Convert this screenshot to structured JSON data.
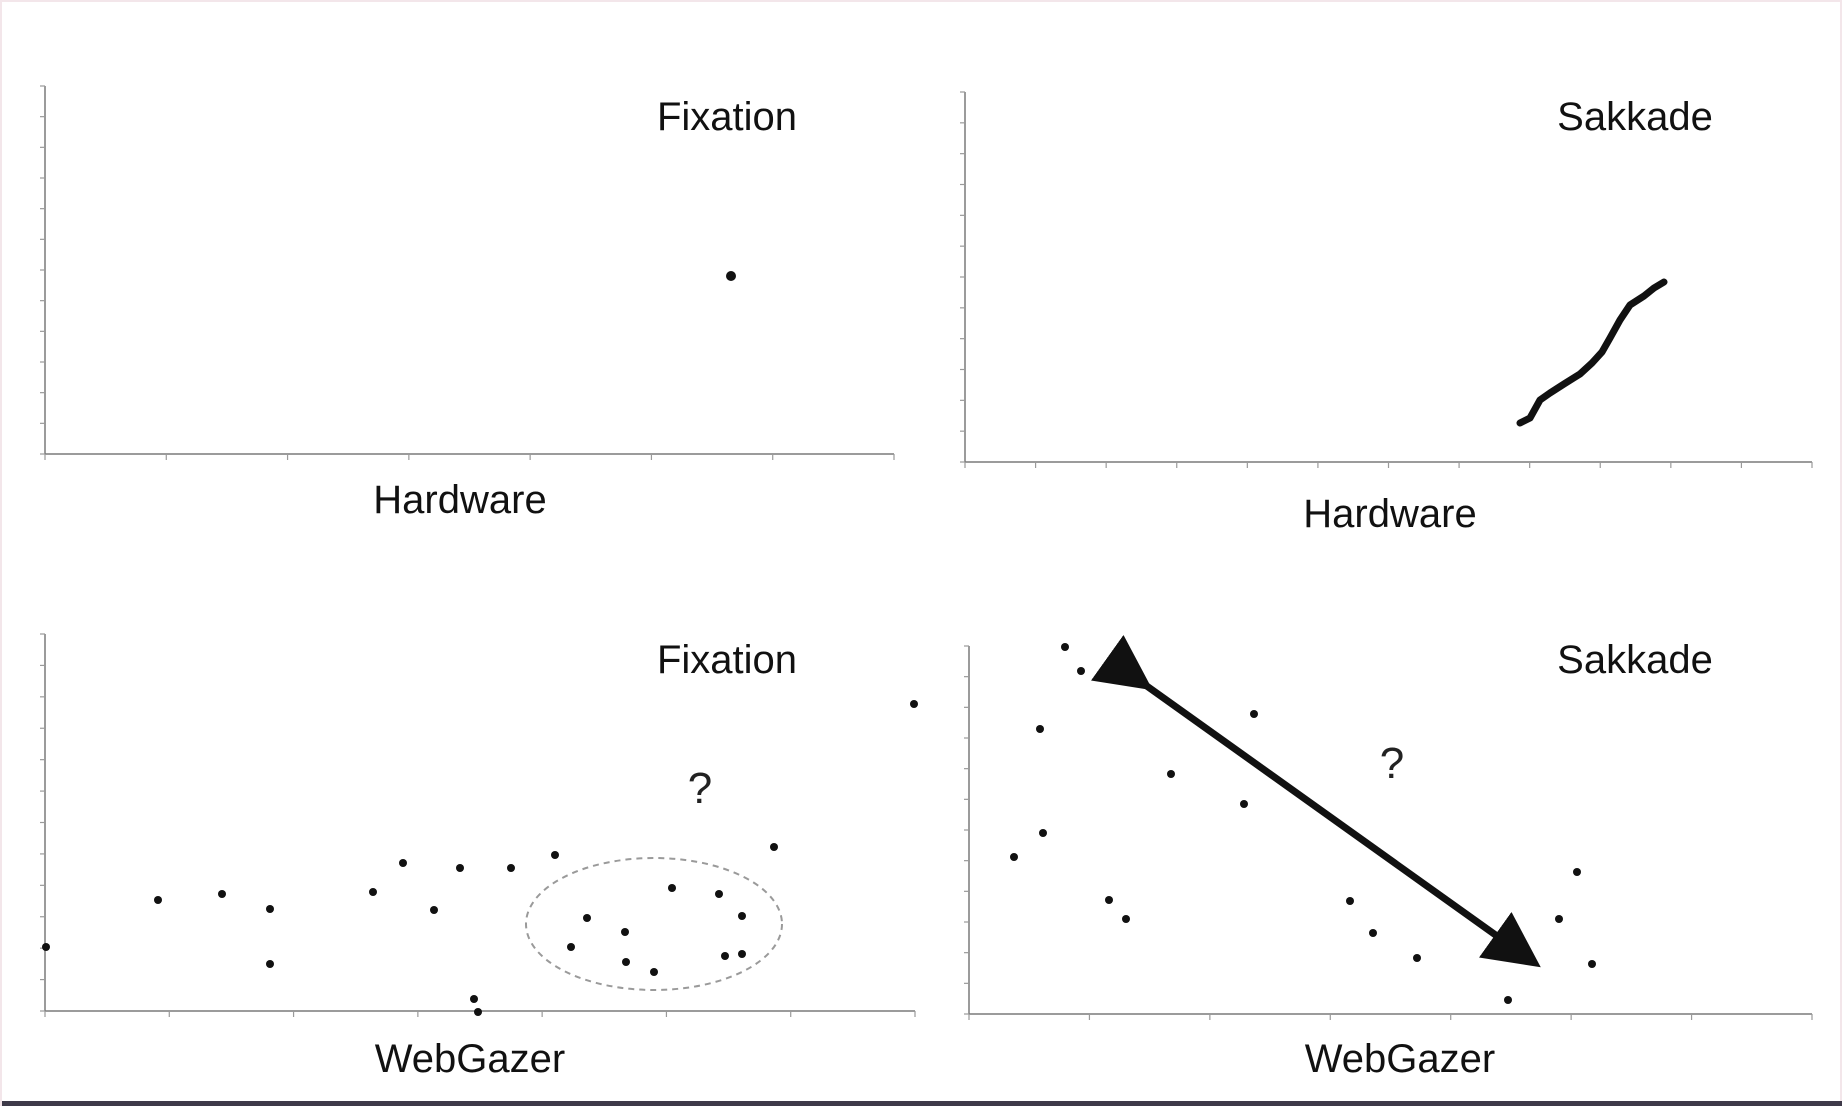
{
  "panels": [
    {
      "id": "hardware-fixation",
      "title": "Fixation",
      "xlabel": "Hardware",
      "question": ""
    },
    {
      "id": "hardware-sakkade",
      "title": "Sakkade",
      "xlabel": "Hardware",
      "question": ""
    },
    {
      "id": "webgazer-fixation",
      "title": "Fixation",
      "xlabel": "WebGazer",
      "question": "?"
    },
    {
      "id": "webgazer-sakkade",
      "title": "Sakkade",
      "xlabel": "WebGazer",
      "question": "?"
    }
  ],
  "colors": {
    "ink": "#111111",
    "axis": "#7a7a7a",
    "ellipse": "#9a9a9a",
    "bottom_bar": "#3e3a49"
  }
}
